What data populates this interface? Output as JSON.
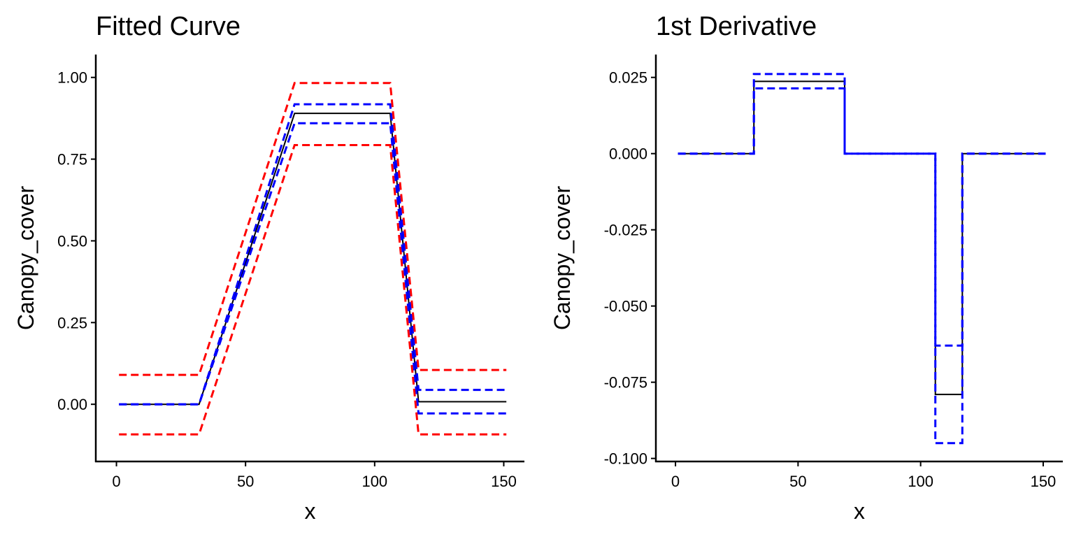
{
  "chart_data": [
    {
      "type": "line",
      "title": "Fitted Curve",
      "xlabel": "x",
      "ylabel": "Canopy_cover",
      "xlim": [
        -8,
        158
      ],
      "ylim": [
        -0.175,
        1.07
      ],
      "xticks": [
        0,
        50,
        100,
        150
      ],
      "xtick_labels": [
        "0",
        "50",
        "100",
        "150"
      ],
      "yticks": [
        0,
        0.25,
        0.5,
        0.75,
        1.0
      ],
      "ytick_labels": [
        "0.00",
        "0.25",
        "0.50",
        "0.75",
        "1.00"
      ],
      "series": [
        {
          "color": "#000000",
          "dash": "solid",
          "x": [
            1,
            32,
            69,
            106,
            117,
            151
          ],
          "y": [
            0,
            0,
            0.89,
            0.89,
            0.008,
            0.008
          ]
        },
        {
          "color": "#0000ff",
          "dash": "dashed",
          "x": [
            1,
            32,
            69,
            106,
            117,
            151
          ],
          "y": [
            0,
            0,
            0.918,
            0.918,
            0.044,
            0.044
          ]
        },
        {
          "color": "#0000ff",
          "dash": "dashed",
          "x": [
            1,
            32,
            69,
            106,
            117,
            151
          ],
          "y": [
            0,
            0,
            0.86,
            0.86,
            -0.028,
            -0.028
          ]
        },
        {
          "color": "#ff0000",
          "dash": "dashed",
          "x": [
            1,
            32,
            69,
            106,
            117,
            151
          ],
          "y": [
            0.09,
            0.09,
            0.983,
            0.983,
            0.105,
            0.105
          ]
        },
        {
          "color": "#ff0000",
          "dash": "dashed",
          "x": [
            1,
            32,
            69,
            106,
            117,
            151
          ],
          "y": [
            -0.092,
            -0.092,
            0.793,
            0.793,
            -0.092,
            -0.092
          ]
        }
      ]
    },
    {
      "type": "line",
      "title": "1st Derivative",
      "xlabel": "x",
      "ylabel": "Canopy_cover",
      "xlim": [
        -8,
        158
      ],
      "ylim": [
        -0.101,
        0.0325
      ],
      "xticks": [
        0,
        50,
        100,
        150
      ],
      "xtick_labels": [
        "0",
        "50",
        "100",
        "150"
      ],
      "yticks": [
        0.025,
        0.0,
        -0.025,
        -0.05,
        -0.075,
        -0.1
      ],
      "ytick_labels": [
        "0.025",
        "0.000",
        "-0.025",
        "-0.050",
        "-0.075",
        "-0.100"
      ],
      "series": [
        {
          "color": "#000000",
          "dash": "solid",
          "x": [
            1,
            32,
            32,
            69,
            69,
            106,
            106,
            117,
            117,
            151
          ],
          "y": [
            0,
            0,
            0.0237,
            0.0237,
            0,
            0,
            -0.079,
            -0.079,
            0,
            0
          ]
        },
        {
          "color": "#0000ff",
          "dash": "dashed",
          "x": [
            1,
            32,
            32,
            69,
            69,
            106,
            106,
            117,
            117,
            151
          ],
          "y": [
            0,
            0,
            0.0261,
            0.0261,
            0,
            0,
            -0.063,
            -0.063,
            0,
            0
          ]
        },
        {
          "color": "#0000ff",
          "dash": "dashed",
          "x": [
            1,
            32,
            32,
            69,
            69,
            106,
            106,
            117,
            117,
            151
          ],
          "y": [
            0,
            0,
            0.0214,
            0.0214,
            0,
            0,
            -0.095,
            -0.095,
            0,
            0
          ]
        }
      ]
    }
  ]
}
